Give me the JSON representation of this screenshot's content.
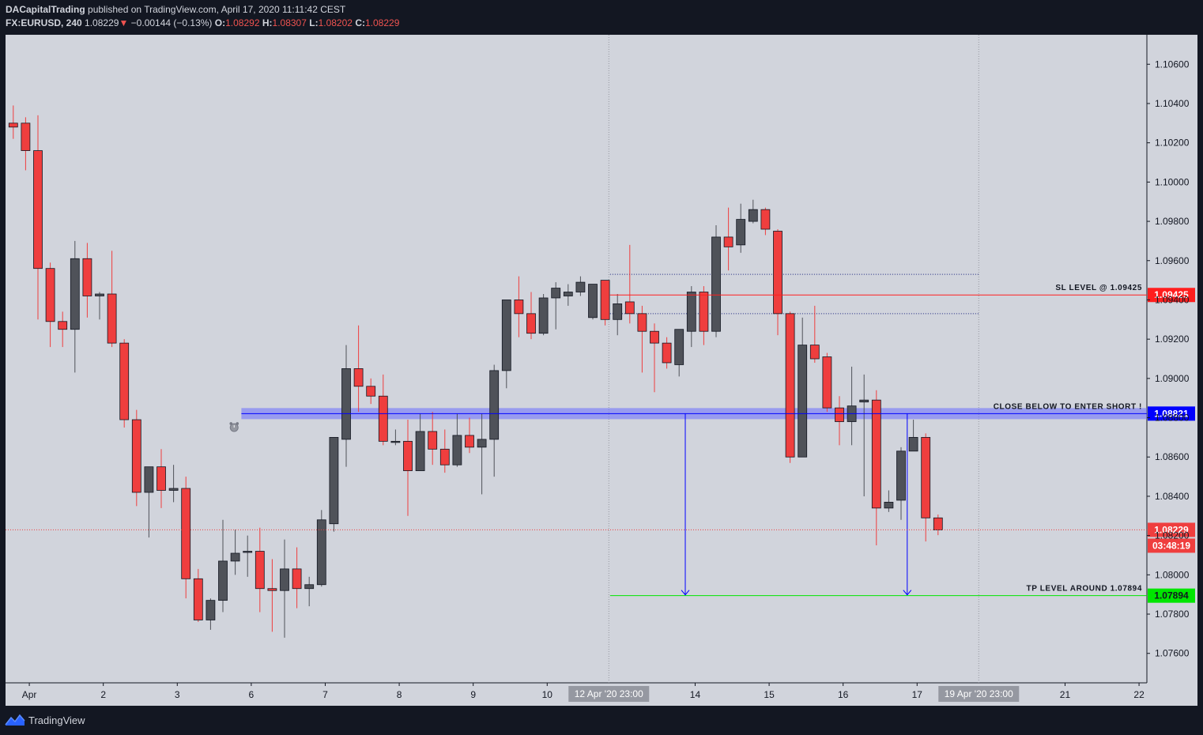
{
  "header": {
    "author": "DACapitalTrading",
    "published_text": "published on TradingView.com, April 17, 2020 11:11:42 CEST",
    "symbol": "FX:EURUSD, 240",
    "last": "1.08229",
    "change": "−0.00144 (−0.13%)",
    "direction_icon": "down-triangle-icon",
    "o_label": "O:",
    "o_value": "1.08292",
    "h_label": "H:",
    "h_value": "1.08307",
    "l_label": "L:",
    "l_value": "1.08202",
    "c_label": "C:",
    "c_value": "1.08229"
  },
  "footer": {
    "brand": "TradingView",
    "brand_icon": "tradingview-logo-icon"
  },
  "colors": {
    "background": "#d1d4dc",
    "frame": "#131722",
    "bull": "#4f5259",
    "bear": "#ef3e3e",
    "sl": "#ff1e1e",
    "entry": "#0000ff",
    "tp": "#00e600"
  },
  "chart_data": {
    "type": "candlestick",
    "symbol": "EURUSD",
    "timeframe": "240",
    "ylim": [
      1.0745,
      1.1075
    ],
    "y_ticks": [
      "1.10600",
      "1.10400",
      "1.10200",
      "1.10000",
      "1.09800",
      "1.09600",
      "1.09400",
      "1.09200",
      "1.09000",
      "1.08800",
      "1.08600",
      "1.08400",
      "1.08200",
      "1.08000",
      "1.07800",
      "1.07600"
    ],
    "x_ticks": [
      {
        "label": "Apr",
        "bar": 1.3
      },
      {
        "label": "2",
        "bar": 7.3
      },
      {
        "label": "3",
        "bar": 13.3
      },
      {
        "label": "6",
        "bar": 19.3
      },
      {
        "label": "7",
        "bar": 25.3
      },
      {
        "label": "8",
        "bar": 31.3
      },
      {
        "label": "9",
        "bar": 37.3
      },
      {
        "label": "10",
        "bar": 43.3
      },
      {
        "label": "14",
        "bar": 55.3
      },
      {
        "label": "15",
        "bar": 61.3
      },
      {
        "label": "16",
        "bar": 67.3
      },
      {
        "label": "17",
        "bar": 73.3
      },
      {
        "label": "21",
        "bar": 85.3
      },
      {
        "label": "22",
        "bar": 91.3
      }
    ],
    "x_markers": [
      {
        "label": "12 Apr '20  23:00",
        "bar": 48.3
      },
      {
        "label": "19 Apr '20  23:00",
        "bar": 78.3
      }
    ],
    "candles": [
      {
        "o": 1.103,
        "h": 1.1039,
        "l": 1.1022,
        "c": 1.1028
      },
      {
        "o": 1.103,
        "h": 1.1033,
        "l": 1.1006,
        "c": 1.1016
      },
      {
        "o": 1.1016,
        "h": 1.1034,
        "l": 1.093,
        "c": 1.0956
      },
      {
        "o": 1.0956,
        "h": 1.0959,
        "l": 1.0916,
        "c": 1.0929
      },
      {
        "o": 1.0929,
        "h": 1.0934,
        "l": 1.0916,
        "c": 1.0925
      },
      {
        "o": 1.0925,
        "h": 1.097,
        "l": 1.0903,
        "c": 1.0961
      },
      {
        "o": 1.0961,
        "h": 1.0969,
        "l": 1.0931,
        "c": 1.0942
      },
      {
        "o": 1.0942,
        "h": 1.0944,
        "l": 1.093,
        "c": 1.0943
      },
      {
        "o": 1.0943,
        "h": 1.0965,
        "l": 1.0916,
        "c": 1.0918
      },
      {
        "o": 1.0918,
        "h": 1.092,
        "l": 1.0875,
        "c": 1.0879
      },
      {
        "o": 1.0879,
        "h": 1.0884,
        "l": 1.0835,
        "c": 1.0842
      },
      {
        "o": 1.0842,
        "h": 1.0855,
        "l": 1.0819,
        "c": 1.0855
      },
      {
        "o": 1.0855,
        "h": 1.0864,
        "l": 1.0834,
        "c": 1.0843
      },
      {
        "o": 1.0843,
        "h": 1.0856,
        "l": 1.0837,
        "c": 1.0844
      },
      {
        "o": 1.0844,
        "h": 1.085,
        "l": 1.0788,
        "c": 1.0798
      },
      {
        "o": 1.0798,
        "h": 1.0803,
        "l": 1.0776,
        "c": 1.0777
      },
      {
        "o": 1.0777,
        "h": 1.0788,
        "l": 1.0772,
        "c": 1.0787
      },
      {
        "o": 1.0787,
        "h": 1.0828,
        "l": 1.0781,
        "c": 1.0807
      },
      {
        "o": 1.0807,
        "h": 1.0823,
        "l": 1.08,
        "c": 1.0811
      },
      {
        "o": 1.0812,
        "h": 1.082,
        "l": 1.0799,
        "c": 1.0812
      },
      {
        "o": 1.0812,
        "h": 1.0824,
        "l": 1.0781,
        "c": 1.0793
      },
      {
        "o": 1.0793,
        "h": 1.0808,
        "l": 1.0771,
        "c": 1.0792
      },
      {
        "o": 1.0792,
        "h": 1.0818,
        "l": 1.0768,
        "c": 1.0803
      },
      {
        "o": 1.0803,
        "h": 1.0814,
        "l": 1.0783,
        "c": 1.0793
      },
      {
        "o": 1.0793,
        "h": 1.0799,
        "l": 1.0784,
        "c": 1.0795
      },
      {
        "o": 1.0795,
        "h": 1.0833,
        "l": 1.0794,
        "c": 1.0828
      },
      {
        "o": 1.0826,
        "h": 1.087,
        "l": 1.0822,
        "c": 1.087
      },
      {
        "o": 1.0869,
        "h": 1.0917,
        "l": 1.0855,
        "c": 1.0905
      },
      {
        "o": 1.0905,
        "h": 1.0927,
        "l": 1.0883,
        "c": 1.0896
      },
      {
        "o": 1.0896,
        "h": 1.09,
        "l": 1.0887,
        "c": 1.0891
      },
      {
        "o": 1.0891,
        "h": 1.0902,
        "l": 1.0866,
        "c": 1.0868
      },
      {
        "o": 1.0868,
        "h": 1.0874,
        "l": 1.0866,
        "c": 1.0868
      },
      {
        "o": 1.0868,
        "h": 1.0879,
        "l": 1.083,
        "c": 1.0853
      },
      {
        "o": 1.0853,
        "h": 1.0882,
        "l": 1.0853,
        "c": 1.0873
      },
      {
        "o": 1.0873,
        "h": 1.0883,
        "l": 1.0856,
        "c": 1.0864
      },
      {
        "o": 1.0864,
        "h": 1.0874,
        "l": 1.0852,
        "c": 1.0856
      },
      {
        "o": 1.0856,
        "h": 1.0882,
        "l": 1.0855,
        "c": 1.0871
      },
      {
        "o": 1.0871,
        "h": 1.088,
        "l": 1.0862,
        "c": 1.0865
      },
      {
        "o": 1.0865,
        "h": 1.0882,
        "l": 1.0841,
        "c": 1.0869
      },
      {
        "o": 1.0869,
        "h": 1.0907,
        "l": 1.085,
        "c": 1.0904
      },
      {
        "o": 1.0904,
        "h": 1.094,
        "l": 1.0895,
        "c": 1.094
      },
      {
        "o": 1.094,
        "h": 1.0952,
        "l": 1.0921,
        "c": 1.0933
      },
      {
        "o": 1.0933,
        "h": 1.0944,
        "l": 1.092,
        "c": 1.0923
      },
      {
        "o": 1.0923,
        "h": 1.0943,
        "l": 1.0922,
        "c": 1.0941
      },
      {
        "o": 1.0941,
        "h": 1.0949,
        "l": 1.0925,
        "c": 1.0946
      },
      {
        "o": 1.0942,
        "h": 1.0948,
        "l": 1.0937,
        "c": 1.0944
      },
      {
        "o": 1.0944,
        "h": 1.0952,
        "l": 1.0942,
        "c": 1.0949
      },
      {
        "o": 1.0931,
        "h": 1.0947,
        "l": 1.093,
        "c": 1.0948
      },
      {
        "o": 1.095,
        "h": 1.095,
        "l": 1.0927,
        "c": 1.093
      },
      {
        "o": 1.093,
        "h": 1.0943,
        "l": 1.0922,
        "c": 1.0938
      },
      {
        "o": 1.0939,
        "h": 1.0968,
        "l": 1.0928,
        "c": 1.0933
      },
      {
        "o": 1.0933,
        "h": 1.0937,
        "l": 1.0903,
        "c": 1.0924
      },
      {
        "o": 1.0924,
        "h": 1.0928,
        "l": 1.0893,
        "c": 1.0918
      },
      {
        "o": 1.0918,
        "h": 1.0921,
        "l": 1.0905,
        "c": 1.0908
      },
      {
        "o": 1.0907,
        "h": 1.0925,
        "l": 1.0901,
        "c": 1.0925
      },
      {
        "o": 1.0924,
        "h": 1.0947,
        "l": 1.0916,
        "c": 1.0944
      },
      {
        "o": 1.0944,
        "h": 1.0947,
        "l": 1.0917,
        "c": 1.0924
      },
      {
        "o": 1.0924,
        "h": 1.0978,
        "l": 1.0921,
        "c": 1.0972
      },
      {
        "o": 1.0972,
        "h": 1.0987,
        "l": 1.0955,
        "c": 1.0967
      },
      {
        "o": 1.0968,
        "h": 1.0989,
        "l": 1.0964,
        "c": 1.0981
      },
      {
        "o": 1.098,
        "h": 1.0991,
        "l": 1.0979,
        "c": 1.0986
      },
      {
        "o": 1.0986,
        "h": 1.0987,
        "l": 1.0973,
        "c": 1.0976
      },
      {
        "o": 1.0975,
        "h": 1.0976,
        "l": 1.0922,
        "c": 1.0933
      },
      {
        "o": 1.0933,
        "h": 1.0934,
        "l": 1.0857,
        "c": 1.086
      },
      {
        "o": 1.086,
        "h": 1.0931,
        "l": 1.086,
        "c": 1.0917
      },
      {
        "o": 1.0917,
        "h": 1.0937,
        "l": 1.0908,
        "c": 1.091
      },
      {
        "o": 1.0911,
        "h": 1.0913,
        "l": 1.0883,
        "c": 1.0885
      },
      {
        "o": 1.0885,
        "h": 1.0891,
        "l": 1.0866,
        "c": 1.0878
      },
      {
        "o": 1.0878,
        "h": 1.0906,
        "l": 1.0866,
        "c": 1.0886
      },
      {
        "o": 1.0888,
        "h": 1.0902,
        "l": 1.084,
        "c": 1.0889
      },
      {
        "o": 1.0889,
        "h": 1.0894,
        "l": 1.0815,
        "c": 1.0834
      },
      {
        "o": 1.0834,
        "h": 1.0843,
        "l": 1.0832,
        "c": 1.0837
      },
      {
        "o": 1.0838,
        "h": 1.0865,
        "l": 1.0828,
        "c": 1.0863
      },
      {
        "o": 1.0863,
        "h": 1.0879,
        "l": 1.0864,
        "c": 1.087
      },
      {
        "o": 1.087,
        "h": 1.0872,
        "l": 1.0817,
        "c": 1.0829
      },
      {
        "o": 1.0829,
        "h": 1.08307,
        "l": 1.08202,
        "c": 1.08229
      }
    ],
    "levels": [
      {
        "name": "sl",
        "label": "SL LEVEL @ 1.09425",
        "value": 1.09425,
        "price_tag": "1.09425",
        "from_bar": 48.4
      },
      {
        "name": "entry",
        "label": "CLOSE BELOW TO ENTER SHORT !",
        "value": 1.08821,
        "price_tag": "1.08821",
        "from_bar": 18.5
      },
      {
        "name": "tp",
        "label": "TP LEVEL AROUND 1.07894",
        "value": 1.07894,
        "price_tag": "1.07894",
        "from_bar": 48.4
      }
    ],
    "zone_dotted_lines": [
      {
        "value": 1.0953,
        "from_bar": 48.4,
        "to_bar": 78.3
      },
      {
        "value": 1.0933,
        "from_bar": 48.4,
        "to_bar": 78.3
      }
    ],
    "arrows": [
      {
        "bar": 54.5,
        "from": 1.08821,
        "to": 1.07894
      },
      {
        "bar": 72.5,
        "from": 1.08821,
        "to": 1.07894
      }
    ],
    "current_price": {
      "value": 1.08229,
      "price_tag": "1.08229",
      "countdown": "03:48:19"
    },
    "alarm_icon": {
      "name": "alarm-clock-icon",
      "bar": 17.4,
      "value": 1.0875
    }
  }
}
